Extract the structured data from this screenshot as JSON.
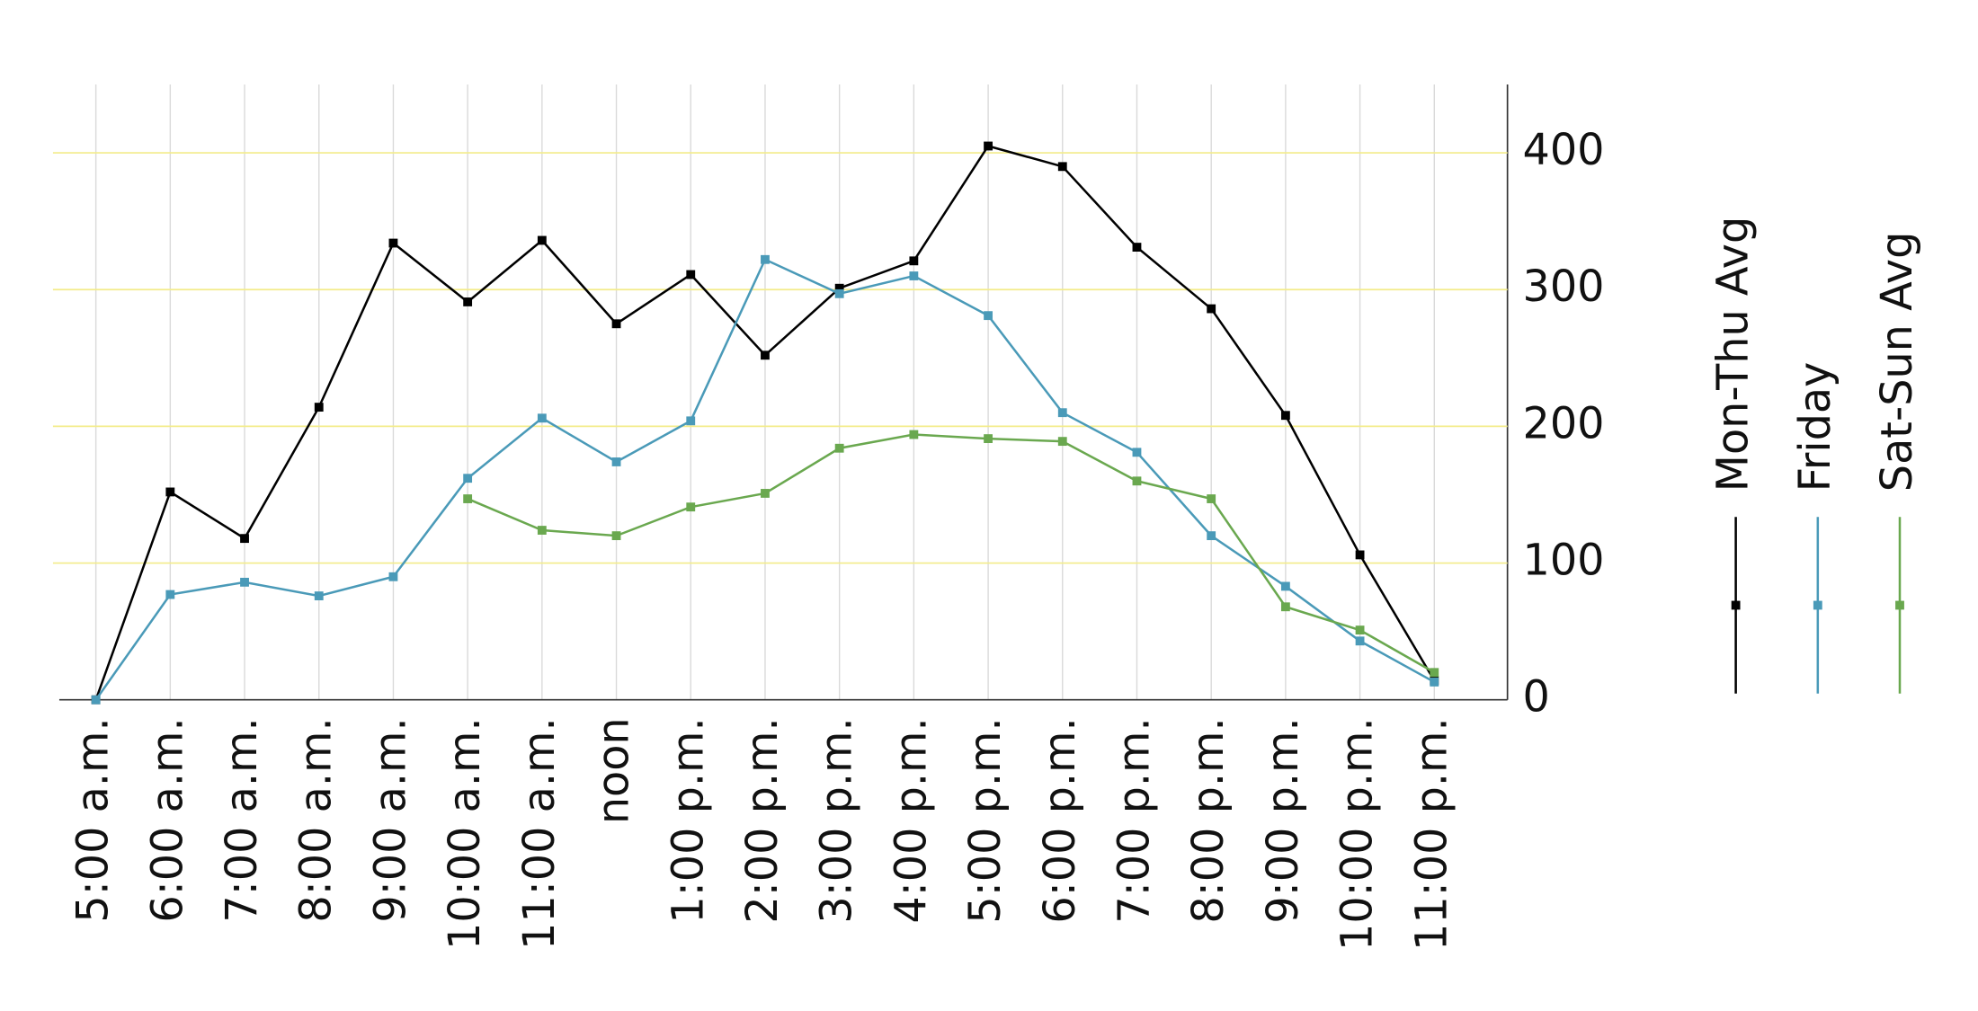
{
  "chart_data": {
    "type": "line",
    "categories": [
      "5:00 a.m.",
      "6:00 a.m.",
      "7:00 a.m.",
      "8:00 a.m.",
      "9:00 a.m.",
      "10:00 a.m.",
      "11:00 a.m.",
      "noon",
      "1:00 p.m.",
      "2:00 p.m.",
      "3:00 p.m.",
      "4:00 p.m.",
      "5:00 p.m.",
      "6:00 p.m.",
      "7:00 p.m.",
      "8:00 p.m.",
      "9:00 p.m.",
      "10:00 p.m.",
      "11:00 p.m."
    ],
    "series": [
      {
        "name": "Mon-Thu Avg",
        "color": "#000000",
        "values": [
          0,
          152,
          118,
          214,
          334,
          291,
          336,
          275,
          311,
          252,
          301,
          321,
          405,
          390,
          331,
          286,
          208,
          106,
          14
        ]
      },
      {
        "name": "Friday",
        "color": "#4a9ab8",
        "values": [
          0,
          77,
          86,
          76,
          90,
          162,
          206,
          174,
          204,
          322,
          297,
          310,
          281,
          210,
          181,
          120,
          83,
          43,
          13
        ]
      },
      {
        "name": "Sat-Sun Avg",
        "color": "#6aa84f",
        "values": [
          null,
          null,
          null,
          null,
          null,
          147,
          124,
          120,
          141,
          151,
          184,
          194,
          191,
          189,
          160,
          147,
          68,
          51,
          20
        ]
      }
    ],
    "ylim": [
      0,
      450
    ],
    "yticks": [
      0,
      100,
      200,
      300,
      400
    ],
    "grid": true
  }
}
